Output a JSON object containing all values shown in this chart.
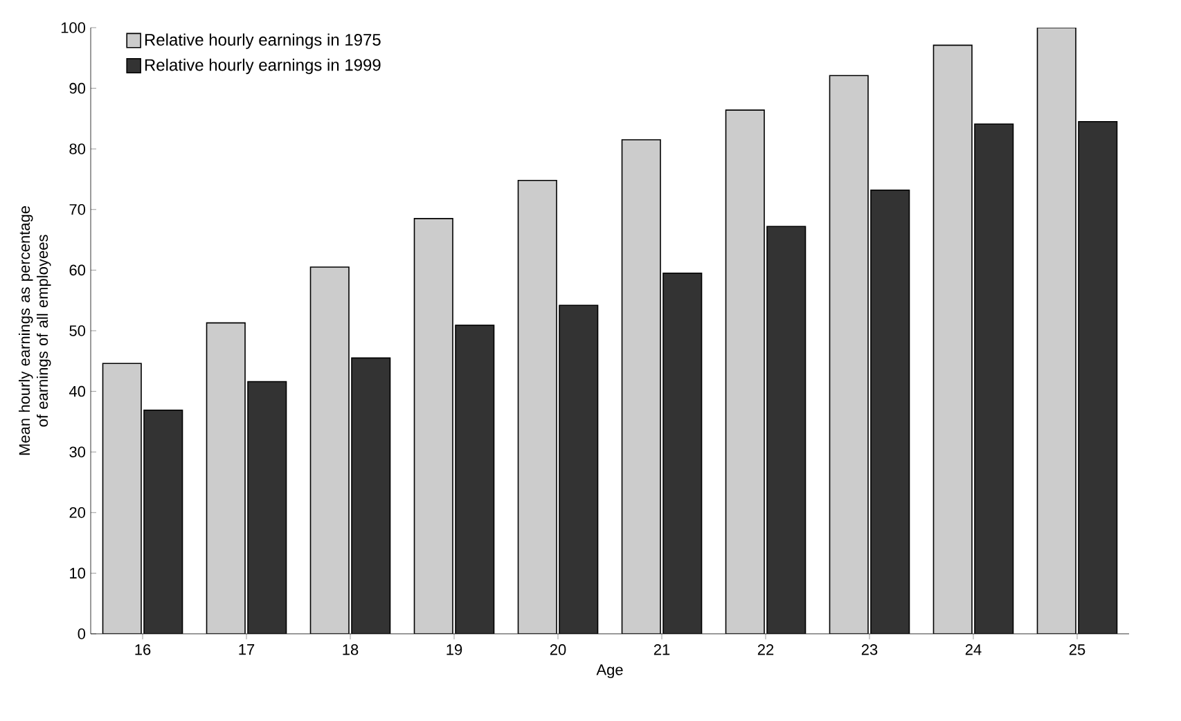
{
  "chart_data": {
    "type": "bar",
    "xlabel": "Age",
    "ylabel": "Mean hourly earnings as percentage of earnings of all employees",
    "categories": [
      "16",
      "17",
      "18",
      "19",
      "20",
      "21",
      "22",
      "23",
      "24",
      "25"
    ],
    "series": [
      {
        "name": "Relative hourly earnings in 1975",
        "color": "#cccccc",
        "values": [
          44.6,
          51.3,
          60.5,
          68.5,
          74.8,
          81.5,
          86.4,
          92.1,
          97.1,
          100
        ]
      },
      {
        "name": "Relative hourly earnings in 1999",
        "color": "#333333",
        "values": [
          36.9,
          41.6,
          45.5,
          50.9,
          54.2,
          59.5,
          67.2,
          73.2,
          84.1,
          84.5
        ]
      }
    ],
    "ylim": [
      0,
      100
    ],
    "yticks": [
      0,
      10,
      20,
      30,
      40,
      50,
      60,
      70,
      80,
      90,
      100
    ],
    "grid": false,
    "legend": "top left"
  }
}
